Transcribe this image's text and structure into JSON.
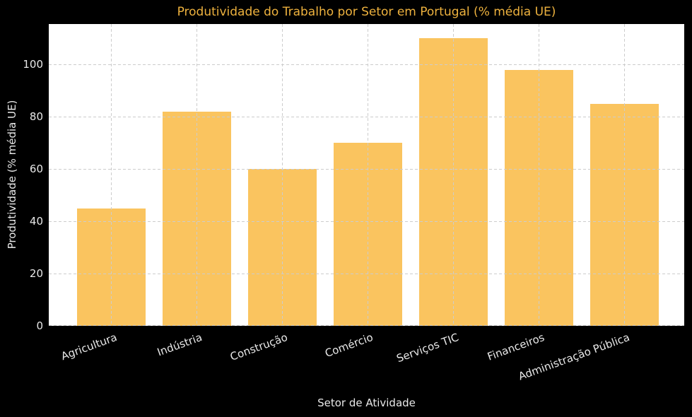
{
  "chart_data": {
    "type": "bar",
    "title": "Produtividade do Trabalho por Setor em Portugal (% média UE)",
    "xlabel": "Setor de Atividade",
    "ylabel": "Produtividade (% média UE)",
    "categories": [
      "Agricultura",
      "Indústria",
      "Construção",
      "Comércio",
      "Serviços TIC",
      "Financeiros",
      "Administração Pública"
    ],
    "values": [
      45,
      82,
      60,
      70,
      110,
      98,
      85
    ],
    "yticks": [
      0,
      20,
      40,
      60,
      80,
      100
    ],
    "ylim": [
      0,
      115.5
    ],
    "xlim": [
      -0.73,
      6.7
    ],
    "bar_width_units": 0.8,
    "tick_label_rotation_deg": 20,
    "grid": "dashed, drawn above bars",
    "legend": "none",
    "colors": {
      "figure_background": "#000000",
      "plot_background": "#ffffff",
      "bar_fill": "#fac45f",
      "title_text": "#eeb23e",
      "axis_text": "#e8e8e8",
      "gridline": "#cccccc"
    }
  }
}
